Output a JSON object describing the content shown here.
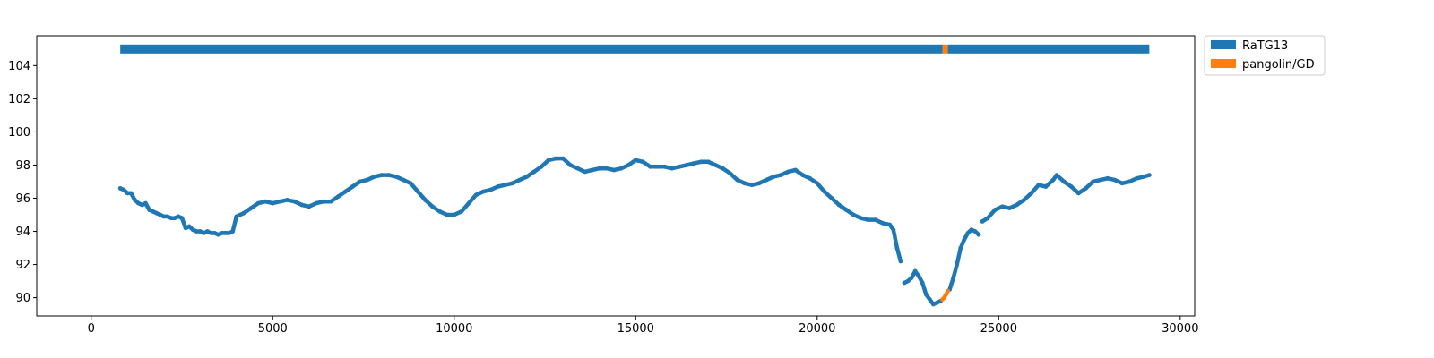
{
  "chart_data": {
    "type": "scatter",
    "xlim": [
      -1500,
      30400
    ],
    "ylim": [
      88.9,
      105.8
    ],
    "x_ticks": [
      0,
      5000,
      10000,
      15000,
      20000,
      25000,
      30000
    ],
    "y_ticks": [
      90,
      92,
      94,
      96,
      98,
      100,
      102,
      104
    ],
    "legend": {
      "placement": "outside-top-right",
      "entries": [
        {
          "label": "RaTG13",
          "color": "#1f77b4"
        },
        {
          "label": "pangolin/GD",
          "color": "#ff7f0e"
        }
      ]
    },
    "grid": false,
    "best_match_bar": {
      "y": 105,
      "segments": [
        {
          "start": 800,
          "end": 23450,
          "series": "RaTG13"
        },
        {
          "start": 23450,
          "end": 23600,
          "series": "pangolin/GD"
        },
        {
          "start": 23600,
          "end": 29150,
          "series": "RaTG13"
        }
      ]
    },
    "series": [
      {
        "name": "RaTG13",
        "color": "#1f77b4",
        "segments": [
          [
            [
              800,
              96.6
            ],
            [
              900,
              96.5
            ],
            [
              1000,
              96.3
            ],
            [
              1100,
              96.3
            ],
            [
              1200,
              95.9
            ],
            [
              1300,
              95.7
            ],
            [
              1400,
              95.6
            ],
            [
              1500,
              95.7
            ],
            [
              1600,
              95.3
            ],
            [
              1700,
              95.2
            ],
            [
              1800,
              95.1
            ],
            [
              1900,
              95.0
            ],
            [
              2000,
              94.9
            ],
            [
              2100,
              94.9
            ],
            [
              2200,
              94.8
            ],
            [
              2300,
              94.8
            ],
            [
              2400,
              94.9
            ],
            [
              2500,
              94.8
            ],
            [
              2600,
              94.2
            ],
            [
              2700,
              94.3
            ],
            [
              2800,
              94.1
            ],
            [
              2900,
              94.0
            ],
            [
              3000,
              94.0
            ],
            [
              3100,
              93.9
            ],
            [
              3200,
              94.0
            ],
            [
              3300,
              93.9
            ],
            [
              3400,
              93.9
            ],
            [
              3500,
              93.8
            ],
            [
              3600,
              93.9
            ],
            [
              3700,
              93.9
            ],
            [
              3800,
              93.9
            ],
            [
              3900,
              94.0
            ],
            [
              4000,
              94.9
            ],
            [
              4200,
              95.1
            ],
            [
              4400,
              95.4
            ],
            [
              4600,
              95.7
            ],
            [
              4800,
              95.8
            ],
            [
              5000,
              95.7
            ],
            [
              5200,
              95.8
            ],
            [
              5400,
              95.9
            ],
            [
              5600,
              95.8
            ],
            [
              5800,
              95.6
            ],
            [
              6000,
              95.5
            ],
            [
              6200,
              95.7
            ],
            [
              6400,
              95.8
            ],
            [
              6600,
              95.8
            ],
            [
              6800,
              96.1
            ],
            [
              7000,
              96.4
            ],
            [
              7200,
              96.7
            ],
            [
              7400,
              97.0
            ],
            [
              7600,
              97.1
            ],
            [
              7800,
              97.3
            ],
            [
              8000,
              97.4
            ],
            [
              8200,
              97.4
            ],
            [
              8400,
              97.3
            ],
            [
              8600,
              97.1
            ],
            [
              8800,
              96.9
            ],
            [
              9000,
              96.4
            ],
            [
              9200,
              95.9
            ],
            [
              9400,
              95.5
            ],
            [
              9600,
              95.2
            ],
            [
              9800,
              95.0
            ],
            [
              10000,
              95.0
            ],
            [
              10200,
              95.2
            ],
            [
              10400,
              95.7
            ],
            [
              10600,
              96.2
            ],
            [
              10800,
              96.4
            ],
            [
              11000,
              96.5
            ],
            [
              11200,
              96.7
            ],
            [
              11400,
              96.8
            ],
            [
              11600,
              96.9
            ],
            [
              11800,
              97.1
            ],
            [
              12000,
              97.3
            ],
            [
              12200,
              97.6
            ],
            [
              12400,
              97.9
            ],
            [
              12600,
              98.3
            ],
            [
              12800,
              98.4
            ],
            [
              13000,
              98.4
            ],
            [
              13200,
              98.0
            ],
            [
              13400,
              97.8
            ],
            [
              13600,
              97.6
            ],
            [
              13800,
              97.7
            ],
            [
              14000,
              97.8
            ],
            [
              14200,
              97.8
            ],
            [
              14400,
              97.7
            ],
            [
              14600,
              97.8
            ],
            [
              14800,
              98.0
            ],
            [
              15000,
              98.3
            ],
            [
              15200,
              98.2
            ],
            [
              15400,
              97.9
            ],
            [
              15600,
              97.9
            ],
            [
              15800,
              97.9
            ],
            [
              16000,
              97.8
            ],
            [
              16200,
              97.9
            ],
            [
              16400,
              98.0
            ],
            [
              16600,
              98.1
            ],
            [
              16800,
              98.2
            ],
            [
              17000,
              98.2
            ],
            [
              17200,
              98.0
            ],
            [
              17400,
              97.8
            ],
            [
              17600,
              97.5
            ],
            [
              17800,
              97.1
            ],
            [
              18000,
              96.9
            ],
            [
              18200,
              96.8
            ],
            [
              18400,
              96.9
            ],
            [
              18600,
              97.1
            ],
            [
              18800,
              97.3
            ],
            [
              19000,
              97.4
            ],
            [
              19200,
              97.6
            ],
            [
              19400,
              97.7
            ],
            [
              19600,
              97.4
            ],
            [
              19800,
              97.2
            ],
            [
              20000,
              96.9
            ],
            [
              20200,
              96.4
            ],
            [
              20400,
              96.0
            ],
            [
              20600,
              95.6
            ],
            [
              20800,
              95.3
            ],
            [
              21000,
              95.0
            ],
            [
              21200,
              94.8
            ],
            [
              21400,
              94.7
            ],
            [
              21600,
              94.7
            ],
            [
              21800,
              94.5
            ],
            [
              22000,
              94.4
            ],
            [
              22100,
              94.1
            ],
            [
              22200,
              93.0
            ],
            [
              22300,
              92.2
            ]
          ],
          [
            [
              22400,
              90.9
            ],
            [
              22500,
              91.0
            ],
            [
              22600,
              91.2
            ],
            [
              22700,
              91.6
            ],
            [
              22800,
              91.3
            ],
            [
              22900,
              90.9
            ],
            [
              23000,
              90.2
            ],
            [
              23100,
              89.9
            ],
            [
              23200,
              89.6
            ],
            [
              23300,
              89.7
            ],
            [
              23400,
              89.8
            ]
          ],
          [
            [
              23650,
              90.5
            ],
            [
              23750,
              91.2
            ],
            [
              23850,
              92.0
            ],
            [
              23950,
              93.0
            ],
            [
              24050,
              93.5
            ],
            [
              24150,
              93.9
            ],
            [
              24250,
              94.1
            ],
            [
              24350,
              94.0
            ],
            [
              24450,
              93.8
            ]
          ],
          [
            [
              24550,
              94.6
            ],
            [
              24700,
              94.8
            ],
            [
              24900,
              95.3
            ],
            [
              25100,
              95.5
            ],
            [
              25300,
              95.4
            ],
            [
              25500,
              95.6
            ],
            [
              25700,
              95.9
            ],
            [
              25900,
              96.3
            ],
            [
              26100,
              96.8
            ],
            [
              26300,
              96.7
            ],
            [
              26500,
              97.1
            ],
            [
              26600,
              97.4
            ],
            [
              26800,
              97.0
            ],
            [
              27000,
              96.7
            ],
            [
              27200,
              96.3
            ],
            [
              27400,
              96.6
            ],
            [
              27600,
              97.0
            ],
            [
              27800,
              97.1
            ],
            [
              28000,
              97.2
            ],
            [
              28200,
              97.1
            ],
            [
              28400,
              96.9
            ],
            [
              28600,
              97.0
            ],
            [
              28800,
              97.2
            ],
            [
              29000,
              97.3
            ],
            [
              29150,
              97.4
            ]
          ]
        ]
      },
      {
        "name": "pangolin/GD",
        "color": "#ff7f0e",
        "segments": [
          [
            [
              23450,
              89.9
            ],
            [
              23500,
              90.0
            ],
            [
              23550,
              90.2
            ],
            [
              23600,
              90.4
            ]
          ]
        ]
      }
    ]
  }
}
